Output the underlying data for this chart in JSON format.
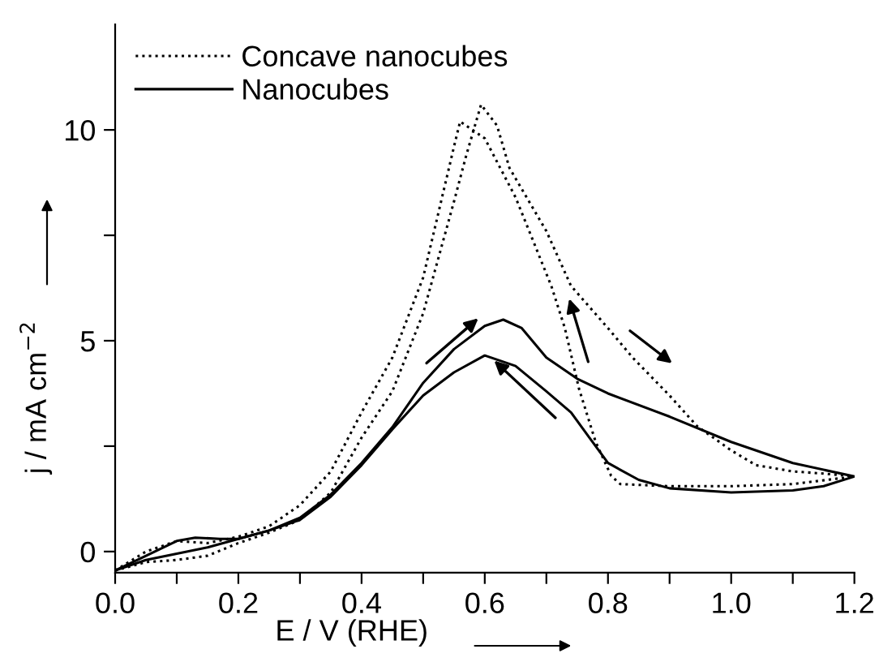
{
  "chart_data": {
    "type": "line",
    "xlabel": "E / V (RHE)",
    "ylabel": "j / mA cm$^{−2}$",
    "xlim": [
      0.0,
      1.2
    ],
    "ylim": [
      -0.5,
      12.5
    ],
    "xticks": [
      {
        "value": 0.0,
        "label": "0.0"
      },
      {
        "value": 0.1,
        "label": null
      },
      {
        "value": 0.2,
        "label": "0.2"
      },
      {
        "value": 0.3,
        "label": null
      },
      {
        "value": 0.4,
        "label": "0.4"
      },
      {
        "value": 0.5,
        "label": null
      },
      {
        "value": 0.6,
        "label": "0.6"
      },
      {
        "value": 0.7,
        "label": null
      },
      {
        "value": 0.8,
        "label": "0.8"
      },
      {
        "value": 0.9,
        "label": null
      },
      {
        "value": 1.0,
        "label": "1.0"
      },
      {
        "value": 1.1,
        "label": null
      },
      {
        "value": 1.2,
        "label": "1.2"
      }
    ],
    "yticks": [
      0,
      {
        "value": 2.5,
        "label": null
      },
      5,
      {
        "value": 7.5,
        "label": null
      },
      10
    ],
    "grid": false,
    "legend": "top left",
    "marker": "none",
    "series": [
      {
        "name": "Concave nanocubes",
        "color": "#000000",
        "line_style": "dotted",
        "x": [
          0.0,
          0.05,
          0.1,
          0.15,
          0.2,
          0.25,
          0.3,
          0.35,
          0.4,
          0.45,
          0.5,
          0.55,
          0.57,
          0.594,
          0.62,
          0.64,
          0.7,
          0.74,
          0.8,
          0.84,
          0.9,
          0.945,
          1.0,
          1.04,
          1.1,
          1.15,
          1.2
        ],
        "values": [
          -0.45,
          -0.25,
          -0.2,
          -0.1,
          0.2,
          0.45,
          0.75,
          1.4,
          2.7,
          3.8,
          5.65,
          8.3,
          9.4,
          10.6,
          10.1,
          9.1,
          7.6,
          6.3,
          5.3,
          4.6,
          3.7,
          2.97,
          2.4,
          2.05,
          1.9,
          1.85,
          1.78
        ]
      },
      {
        "color": "#000000",
        "line_style": "dotted",
        "x": [
          0.0,
          0.05,
          0.1,
          0.15,
          0.2,
          0.25,
          0.3,
          0.35,
          0.4,
          0.45,
          0.5,
          0.55,
          0.56,
          0.6,
          0.65,
          0.708,
          0.73,
          0.753,
          0.78,
          0.805,
          0.82,
          0.9,
          1.0,
          1.1,
          1.2
        ],
        "values": [
          -0.45,
          0.0,
          0.25,
          0.2,
          0.35,
          0.6,
          1.1,
          1.9,
          3.3,
          4.6,
          6.5,
          9.6,
          10.2,
          9.8,
          8.4,
          6.3,
          5.3,
          3.86,
          2.6,
          1.8,
          1.6,
          1.55,
          1.55,
          1.6,
          1.78
        ]
      },
      {
        "name": "Nanocubes",
        "color": "#000000",
        "line_style": "solid",
        "x": [
          0.0,
          0.05,
          0.1,
          0.13,
          0.17,
          0.2,
          0.25,
          0.3,
          0.35,
          0.4,
          0.45,
          0.5,
          0.55,
          0.6,
          0.63,
          0.66,
          0.7,
          0.75,
          0.8,
          0.9,
          1.0,
          1.1,
          1.2
        ],
        "values": [
          -0.45,
          -0.1,
          0.25,
          0.33,
          0.3,
          0.3,
          0.5,
          0.8,
          1.35,
          2.1,
          2.95,
          4.0,
          4.8,
          5.35,
          5.5,
          5.3,
          4.6,
          4.1,
          3.75,
          3.2,
          2.6,
          2.1,
          1.78
        ]
      },
      {
        "color": "#000000",
        "line_style": "solid",
        "x": [
          0.0,
          0.05,
          0.1,
          0.15,
          0.2,
          0.25,
          0.3,
          0.35,
          0.4,
          0.45,
          0.5,
          0.55,
          0.6,
          0.65,
          0.7,
          0.74,
          0.77,
          0.8,
          0.85,
          0.9,
          1.0,
          1.1,
          1.15,
          1.2
        ],
        "values": [
          -0.45,
          -0.2,
          -0.05,
          0.1,
          0.3,
          0.5,
          0.75,
          1.3,
          2.05,
          2.9,
          3.7,
          4.25,
          4.65,
          4.4,
          3.8,
          3.3,
          2.7,
          2.1,
          1.7,
          1.5,
          1.4,
          1.45,
          1.55,
          1.78
        ]
      }
    ]
  }
}
